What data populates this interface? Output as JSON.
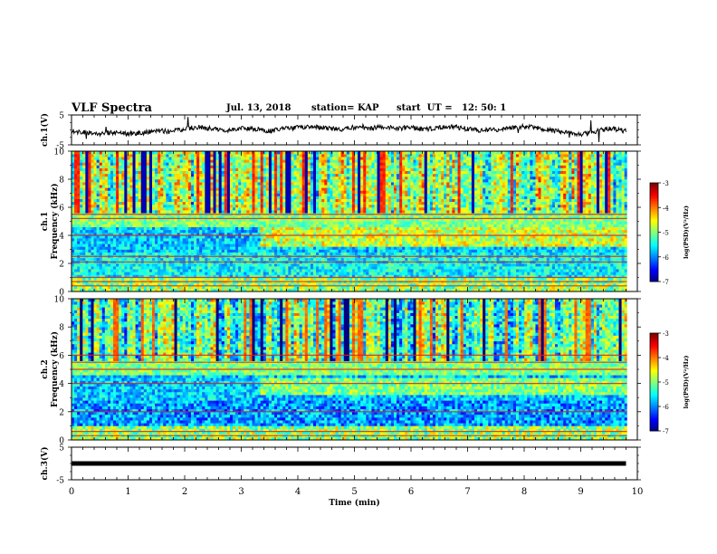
{
  "header": {
    "title": "VLF Spectra",
    "date": "Jul. 13, 2018",
    "station": "station= KAP",
    "start": "start  UT =   12: 50: 1"
  },
  "chart_data": [
    {
      "type": "line",
      "ylabel": "ch.1(V)",
      "xlim": [
        0,
        10
      ],
      "ylim": [
        -5,
        5
      ],
      "yticks": [
        -5,
        5
      ],
      "x": [
        0,
        0.25,
        0.5,
        0.75,
        1.0,
        1.25,
        1.5,
        1.75,
        2.0,
        2.25,
        2.5,
        2.75,
        3.0,
        3.25,
        3.5,
        3.75,
        4.0,
        4.25,
        4.5,
        4.75,
        5.0,
        5.25,
        5.5,
        5.75,
        6.0,
        6.25,
        6.5,
        6.75,
        7.0,
        7.25,
        7.5,
        7.75,
        8.0,
        8.25,
        8.5,
        8.75,
        9.0,
        9.25,
        9.5,
        9.8
      ],
      "y": [
        -0.5,
        -0.8,
        -1.2,
        -0.9,
        -1.3,
        -1.1,
        -0.2,
        -0.6,
        0.4,
        0.9,
        0.3,
        -0.1,
        0.5,
        0.2,
        -0.4,
        0.3,
        0.8,
        1.2,
        0.6,
        0.2,
        0.9,
        0.4,
        1.0,
        0.5,
        0.7,
        0.2,
        0.8,
        1.1,
        0.3,
        -0.2,
        0.1,
        0.6,
        1.2,
        0.7,
        -0.3,
        -1.0,
        -1.6,
        -0.6,
        0.5,
        -0.4
      ]
    },
    {
      "type": "heatmap",
      "ylabel": "ch.1\nFrequency (kHz)",
      "xlim": [
        0,
        10
      ],
      "ylim": [
        0,
        10
      ],
      "yticks": [
        0,
        2,
        4,
        6,
        8,
        10
      ],
      "colorbar": {
        "label": "log(PSD)(V²/Hz)",
        "ticks": [
          -3,
          -4,
          -5,
          -6,
          -7
        ],
        "range": [
          -7,
          -3
        ]
      },
      "narrowband_kHz": [
        0.4,
        0.7,
        1.0,
        2.1,
        2.5,
        4.0,
        5.2,
        5.5
      ]
    },
    {
      "type": "heatmap",
      "ylabel": "ch.2\nFrequency (kHz)",
      "xlim": [
        0,
        10
      ],
      "ylim": [
        0,
        10
      ],
      "yticks": [
        0,
        2,
        4,
        6,
        8,
        10
      ],
      "colorbar": {
        "label": "log(PSD)(V²/Hz)",
        "ticks": [
          -3,
          -4,
          -5,
          -6,
          -7
        ],
        "range": [
          -7,
          -3
        ]
      },
      "narrowband_kHz": [
        0.3,
        0.6,
        2.0,
        4.0,
        5.0,
        5.5,
        6.0
      ]
    },
    {
      "type": "line",
      "ylabel": "ch.3(V)",
      "xlabel": "Time (min)",
      "xlim": [
        0,
        10
      ],
      "ylim": [
        -5,
        5
      ],
      "yticks": [
        -5,
        5
      ],
      "xticks": [
        0,
        1,
        2,
        3,
        4,
        5,
        6,
        7,
        8,
        9,
        10
      ],
      "x": [
        0,
        9.8
      ],
      "y": [
        0,
        0
      ]
    }
  ]
}
